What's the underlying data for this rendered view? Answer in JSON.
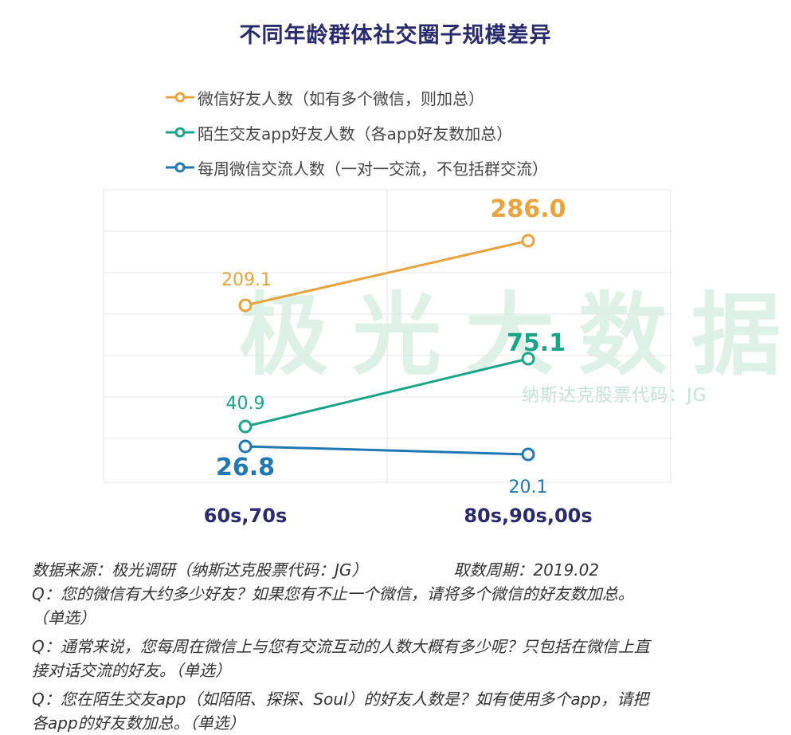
{
  "title": "不同年龄群体社交圈子规模差异",
  "watermark": {
    "brand": "极光大数据",
    "subtitle": "纳斯达克股票代码：JG"
  },
  "chart_data": {
    "type": "line",
    "categories": [
      "60s,70s",
      "80s,90s,00s"
    ],
    "series": [
      {
        "name": "微信好友人数（如有多个微信，则加总）",
        "color": "#e8a33c",
        "values": [
          209.1,
          286.0
        ],
        "labels": [
          "209.1",
          "286.0"
        ]
      },
      {
        "name": "陌生交友app好友人数（各app好友数加总）",
        "color": "#1aa589",
        "values": [
          40.9,
          75.1
        ],
        "labels": [
          "40.9",
          "75.1"
        ]
      },
      {
        "name": "每周微信交流人数（一对一交流，不包括群交流）",
        "color": "#1f78b4",
        "values": [
          26.8,
          20.1
        ],
        "labels": [
          "26.8",
          "20.1"
        ]
      }
    ],
    "grid": true,
    "legend_position": "top"
  },
  "footer": {
    "source": "数据来源：极光调研（纳斯达克股票代码：JG）",
    "period": "取数周期：2019.02",
    "q1_line1": "Q：您的微信有大约多少好友？如果您有不止一个微信，请将多个微信的好友数加总。",
    "q1_line2": "（单选）",
    "q2_line1": "Q：通常来说，您每周在微信上与您有交流互动的人数大概有多少呢？只包括在微信上直",
    "q2_line2": "接对话交流的好友。（单选）",
    "q3_line1": "Q：您在陌生交友app（如陌陌、探探、Soul）的好友人数是？如有使用多个app，请把",
    "q3_line2": "各app的好友数加总。（单选）"
  }
}
